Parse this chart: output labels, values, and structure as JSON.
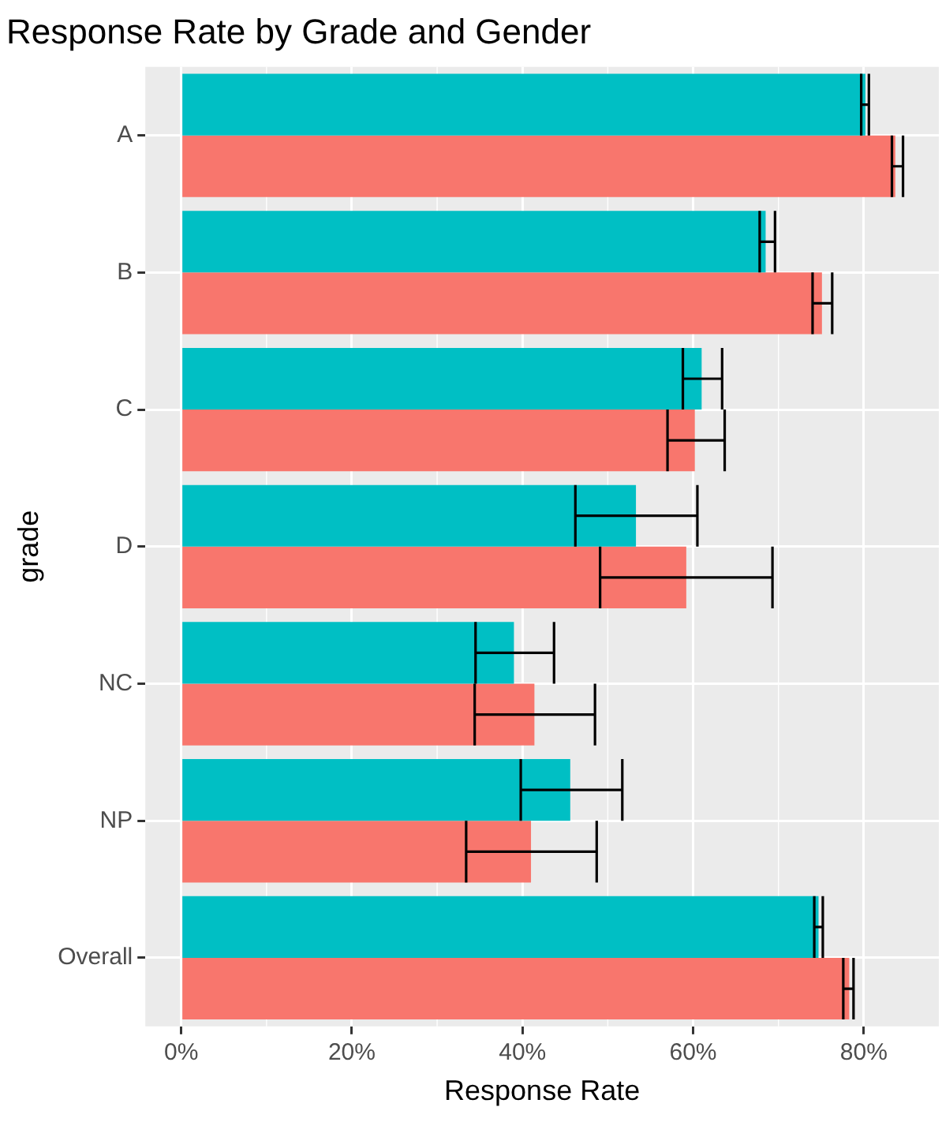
{
  "chart_data": {
    "type": "bar",
    "orientation": "horizontal",
    "title": "Response Rate by Grade and Gender",
    "xlabel": "Response Rate",
    "ylabel": "grade",
    "categories": [
      "A",
      "B",
      "C",
      "D",
      "NC",
      "NP",
      "Overall"
    ],
    "series": [
      {
        "color": "#00bfc4",
        "values": [
          80.2,
          68.5,
          61.0,
          53.3,
          39.0,
          45.6,
          74.7
        ],
        "errors": [
          [
            79.7,
            80.6
          ],
          [
            67.8,
            69.6
          ],
          [
            58.8,
            63.4
          ],
          [
            46.2,
            60.5
          ],
          [
            34.5,
            43.7
          ],
          [
            39.8,
            51.7
          ],
          [
            74.2,
            75.2
          ]
        ]
      },
      {
        "color": "#f8766d",
        "values": [
          83.7,
          75.1,
          60.2,
          59.2,
          41.4,
          41.0,
          78.3
        ],
        "errors": [
          [
            83.3,
            84.6
          ],
          [
            74.0,
            76.3
          ],
          [
            57.0,
            63.7
          ],
          [
            49.1,
            69.3
          ],
          [
            34.4,
            48.5
          ],
          [
            33.4,
            48.7
          ],
          [
            77.6,
            78.8
          ]
        ]
      }
    ],
    "xlim": [
      -4.2,
      88.8
    ],
    "xticks": [
      {
        "value": 0,
        "label": "0%"
      },
      {
        "value": 20,
        "label": "20%"
      },
      {
        "value": 40,
        "label": "40%"
      },
      {
        "value": 60,
        "label": "60%"
      },
      {
        "value": 80,
        "label": "80%"
      }
    ],
    "grid": true,
    "legend": false
  }
}
